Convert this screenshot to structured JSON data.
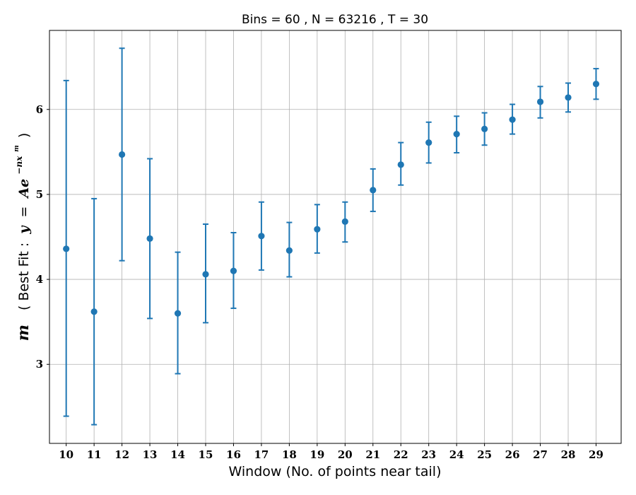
{
  "chart_data": {
    "type": "scatter",
    "title": "Bins = 60 , N = 63216 , T = 30",
    "xlabel": "Window (No. of points near tail)",
    "ylabel": {
      "symbol": "m",
      "text": "( Best Fit :",
      "formula_lhs": "y",
      "formula_eq": "=",
      "formula_rhs": "Ae",
      "formula_exp": "−nx",
      "formula_exp_sup": "m",
      "close": ")"
    },
    "xlim": [
      9.4,
      29.9
    ],
    "ylim": [
      2.07,
      6.93
    ],
    "grid": true,
    "color": "#1f77b4",
    "x_ticks": [
      10,
      11,
      12,
      13,
      14,
      15,
      16,
      17,
      18,
      19,
      20,
      21,
      22,
      23,
      24,
      25,
      26,
      27,
      28,
      29
    ],
    "y_ticks": [
      3,
      4,
      5,
      6
    ],
    "series": [
      {
        "x": [
          10,
          11,
          12,
          13,
          14,
          15,
          16,
          17,
          18,
          19,
          20,
          21,
          22,
          23,
          24,
          25,
          26,
          27,
          28,
          29
        ],
        "y": [
          4.36,
          3.62,
          5.47,
          4.48,
          3.6,
          4.06,
          4.1,
          4.51,
          4.34,
          4.59,
          4.68,
          5.05,
          5.35,
          5.61,
          5.71,
          5.77,
          5.88,
          6.09,
          6.14,
          6.3
        ],
        "err_low": [
          2.39,
          2.29,
          4.22,
          3.54,
          2.89,
          3.49,
          3.66,
          4.11,
          4.03,
          4.31,
          4.44,
          4.8,
          5.11,
          5.37,
          5.49,
          5.58,
          5.71,
          5.9,
          5.97,
          6.12
        ],
        "err_high": [
          6.34,
          4.95,
          6.72,
          5.42,
          4.32,
          4.65,
          4.55,
          4.91,
          4.67,
          4.88,
          4.91,
          5.3,
          5.61,
          5.85,
          5.92,
          5.96,
          6.06,
          6.27,
          6.31,
          6.48
        ]
      }
    ]
  }
}
